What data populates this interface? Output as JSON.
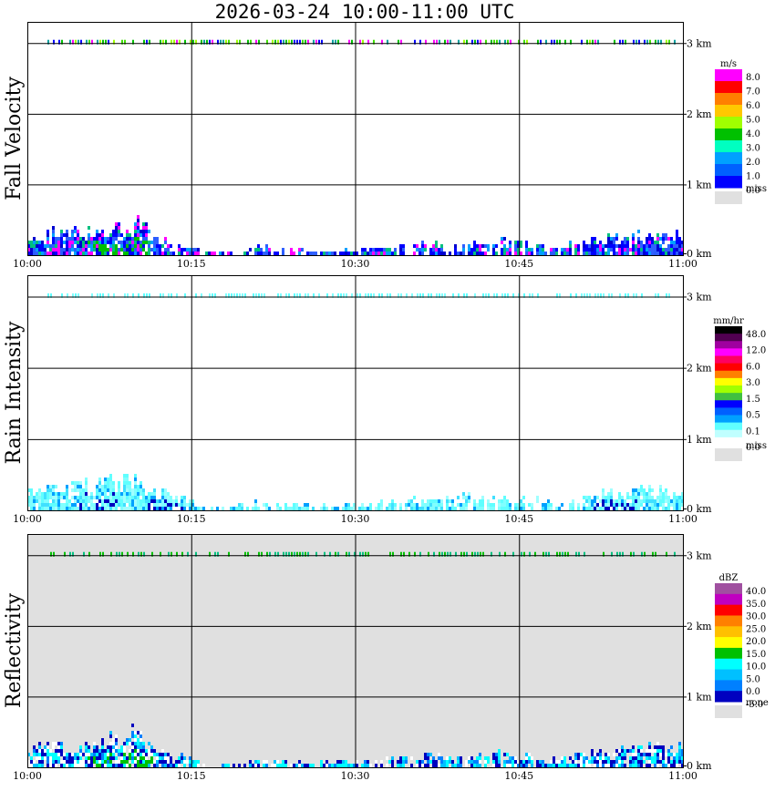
{
  "title": "2026-03-24  10:00-11:00 UTC",
  "chart_data": [
    {
      "type": "heatmap",
      "name": "fall-velocity",
      "ylabel": "Fall Velocity",
      "background": "#ffffff",
      "x_ticks": [
        "10:00",
        "10:15",
        "10:30",
        "10:45",
        "11:00"
      ],
      "y_ticks": [
        "0 km",
        "1 km",
        "2 km",
        "3 km"
      ],
      "ylim_km": [
        0,
        3.3
      ],
      "legend": {
        "unit": "m/s",
        "labels": [
          "8.0",
          "7.0",
          "6.0",
          "5.0",
          "4.0",
          "3.0",
          "2.0",
          "1.0",
          "0.0",
          "miss"
        ],
        "colors": [
          "#ff00ff",
          "#ff0000",
          "#ff7f00",
          "#ffc800",
          "#a0ff00",
          "#00c000",
          "#00ffc0",
          "#00a0ff",
          "#0060ff",
          "#0000ff",
          "#e0e0e0"
        ]
      },
      "echo_palette": [
        "#0000ff",
        "#0000d0",
        "#2a5cff",
        "#00a0ff",
        "#3060ff",
        "#ff00ff",
        "#00c080",
        "#0000ff"
      ],
      "top_palette": [
        "#00c000",
        "#40e000",
        "#a0ff00",
        "#00a0a0",
        "#0000ff",
        "#ff00ff"
      ],
      "profile": [
        [
          0,
          0.3
        ],
        [
          0.05,
          0.38
        ],
        [
          0.12,
          0.45
        ],
        [
          0.16,
          0.55
        ],
        [
          0.19,
          0.35
        ],
        [
          0.25,
          0.18
        ],
        [
          0.28,
          0.05
        ],
        [
          0.35,
          0.15
        ],
        [
          0.45,
          0.1
        ],
        [
          0.5,
          0.12
        ],
        [
          0.62,
          0.22
        ],
        [
          0.72,
          0.25
        ],
        [
          0.8,
          0.15
        ],
        [
          0.88,
          0.3
        ],
        [
          1.0,
          0.35
        ]
      ],
      "hot_spans": [
        [
          0.09,
          0.19
        ]
      ],
      "hot_color": "#00c000"
    },
    {
      "type": "heatmap",
      "name": "rain-intensity",
      "ylabel": "Rain Intensity",
      "background": "#ffffff",
      "x_ticks": [
        "10:00",
        "10:15",
        "10:30",
        "10:45",
        "11:00"
      ],
      "y_ticks": [
        "0 km",
        "1 km",
        "2 km",
        "3 km"
      ],
      "ylim_km": [
        0,
        3.3
      ],
      "legend": {
        "unit": "mm/hr",
        "labels": [
          "48.0",
          "12.0",
          "6.0",
          "3.0",
          "1.5",
          "0.5",
          "0.1",
          "0.0",
          "miss"
        ],
        "colors": [
          "#000000",
          "#500050",
          "#a000a0",
          "#ff00ff",
          "#ff0060",
          "#ff0000",
          "#ff8000",
          "#ffff00",
          "#a0ff00",
          "#40c040",
          "#0000ff",
          "#0060ff",
          "#00a0ff",
          "#60ffff",
          "#c0ffff",
          "#ffffff",
          "#e0e0e0"
        ]
      },
      "echo_palette": [
        "#60ffff",
        "#80ffff",
        "#a0ffff",
        "#40e0ff",
        "#60ffff",
        "#80ffff",
        "#00a0ff"
      ],
      "top_palette": [
        "#60ffff",
        "#80ffff"
      ],
      "profile": [
        [
          0,
          0.3
        ],
        [
          0.05,
          0.38
        ],
        [
          0.12,
          0.45
        ],
        [
          0.16,
          0.55
        ],
        [
          0.19,
          0.35
        ],
        [
          0.25,
          0.18
        ],
        [
          0.28,
          0.05
        ],
        [
          0.35,
          0.15
        ],
        [
          0.45,
          0.1
        ],
        [
          0.5,
          0.12
        ],
        [
          0.62,
          0.22
        ],
        [
          0.72,
          0.25
        ],
        [
          0.8,
          0.15
        ],
        [
          0.88,
          0.3
        ],
        [
          1.0,
          0.35
        ]
      ],
      "hot_spans": [
        [
          0.06,
          0.14
        ],
        [
          0.18,
          0.24
        ],
        [
          0.86,
          0.93
        ]
      ],
      "hot_color": "#0000c0"
    },
    {
      "type": "heatmap",
      "name": "reflectivity",
      "ylabel": "Reflectivity",
      "background": "#e0e0e0",
      "x_ticks": [
        "10:00",
        "10:15",
        "10:30",
        "10:45",
        "11:00"
      ],
      "y_ticks": [
        "0 km",
        "1 km",
        "2 km",
        "3 km"
      ],
      "ylim_km": [
        0,
        3.3
      ],
      "legend": {
        "unit": "dBZ",
        "labels": [
          "40.0",
          "35.0",
          "30.0",
          "25.0",
          "20.0",
          "15.0",
          "10.0",
          "5.0",
          "0.0",
          "-5.0",
          "none"
        ],
        "colors": [
          "#a050a0",
          "#c000c0",
          "#ff0000",
          "#ff8000",
          "#ffc000",
          "#ffff00",
          "#00c000",
          "#00ffff",
          "#00c0ff",
          "#0080ff",
          "#0000c0",
          "#e0e0e0"
        ]
      },
      "echo_palette": [
        "#0000c0",
        "#0080ff",
        "#00c0ff",
        "#00ffff",
        "#ffffff",
        "#0000c0",
        "#00ffff",
        "#ffffff"
      ],
      "top_palette": [
        "#00c000",
        "#00c080"
      ],
      "profile": [
        [
          0,
          0.3
        ],
        [
          0.05,
          0.38
        ],
        [
          0.12,
          0.45
        ],
        [
          0.16,
          0.55
        ],
        [
          0.19,
          0.35
        ],
        [
          0.25,
          0.18
        ],
        [
          0.28,
          0.05
        ],
        [
          0.35,
          0.15
        ],
        [
          0.45,
          0.1
        ],
        [
          0.5,
          0.12
        ],
        [
          0.62,
          0.22
        ],
        [
          0.72,
          0.25
        ],
        [
          0.8,
          0.15
        ],
        [
          0.88,
          0.3
        ],
        [
          1.0,
          0.35
        ]
      ],
      "hot_spans": [
        [
          0.09,
          0.19
        ]
      ],
      "hot_color": "#00c000"
    }
  ]
}
